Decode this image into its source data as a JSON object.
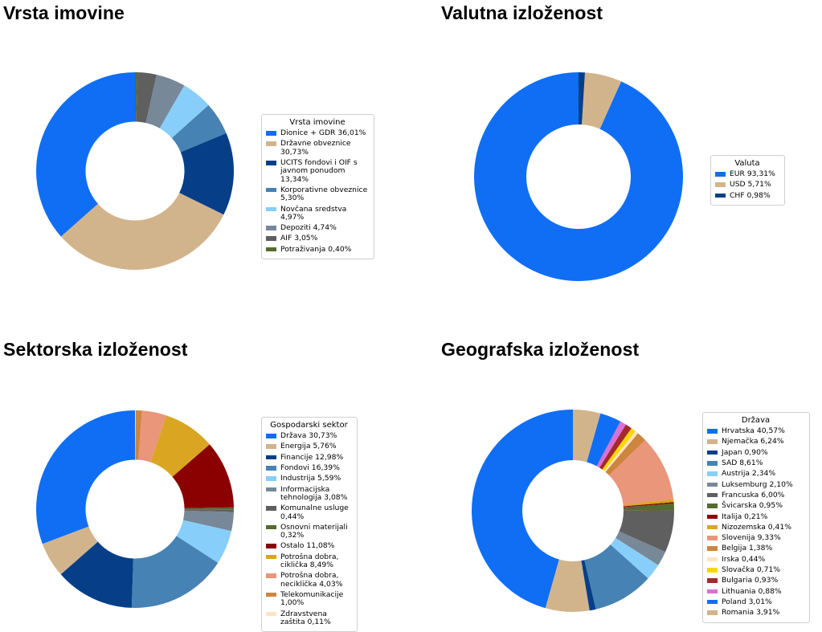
{
  "chart_data": [
    {
      "type": "pie",
      "title": "Vrsta imovine",
      "legend_title": "Vrsta imovine",
      "legend_placement": "right",
      "categories": [
        "Dionice + GDR 36,01%",
        "Državne obveznice 30,73%",
        "UCITS fondovi i OIF s javnom ponudom 13,34%",
        "Korporativne obveznice 5,30%",
        "Novčana sredstva 4,97%",
        "Depoziti 4,74%",
        "AIF 3,05%",
        "Potraživanja 0,40%"
      ],
      "values": [
        36.01,
        30.73,
        13.34,
        5.3,
        4.97,
        4.74,
        3.05,
        0.4
      ],
      "colors": [
        "#0f6ef4",
        "#d2b48c",
        "#063f88",
        "#4682b4",
        "#87cefa",
        "#778899",
        "#5f5f5f",
        "#556b2f"
      ]
    },
    {
      "type": "pie",
      "title": "Valutna izloženost",
      "legend_title": "Valuta",
      "legend_placement": "right",
      "categories": [
        "EUR 93,31%",
        "USD 5,71%",
        "CHF 0,98%"
      ],
      "values": [
        93.31,
        5.71,
        0.98
      ],
      "colors": [
        "#0f6ef4",
        "#d2b48c",
        "#063f88"
      ]
    },
    {
      "type": "pie",
      "title": "Sektorska izloženost",
      "legend_title": "Gospodarski sektor",
      "legend_placement": "right",
      "categories": [
        "Država 30,73%",
        "Energija 5,76%",
        "Financije 12,98%",
        "Fondovi 16,39%",
        "Industrija 5,59%",
        "Informacijska tehnologija 3,08%",
        "Komunalne usluge 0,44%",
        "Osnovni materijali 0,32%",
        "Ostalo 11,08%",
        "Potrošna dobra, ciklička 8,49%",
        "Potrošna dobra, neciklička 4,03%",
        "Telekomunikacije 1,00%",
        "Zdravstvena zaštita 0,11%"
      ],
      "values": [
        30.73,
        5.76,
        12.98,
        16.39,
        5.59,
        3.08,
        0.44,
        0.32,
        11.08,
        8.49,
        4.03,
        1.0,
        0.11
      ],
      "colors": [
        "#0f6ef4",
        "#d2b48c",
        "#063f88",
        "#4682b4",
        "#87cefa",
        "#778899",
        "#5f5f5f",
        "#556b2f",
        "#8b0000",
        "#daa520",
        "#e9967a",
        "#cd853f",
        "#ffe4c4"
      ]
    },
    {
      "type": "pie",
      "title": "Geografska izloženost",
      "legend_title": "Država",
      "legend_placement": "right",
      "categories": [
        "Hrvatska 40,57%",
        "Njemačka 6,24%",
        "Japan 0,90%",
        "SAD 8,61%",
        "Austrija 2,34%",
        "Luksemburg 2,10%",
        "Francuska 6,00%",
        "Švicarska 0,95%",
        "Italija 0,21%",
        "Nizozemska 0,41%",
        "Slovenija 9,33%",
        "Belgija 1,38%",
        "Irska 0,44%",
        "Slovačka 0,71%",
        "Bulgaria 0,93%",
        "Lithuania 0,88%",
        "Poland 3,01%",
        "Romania 3,91%"
      ],
      "values": [
        40.57,
        6.24,
        0.9,
        8.61,
        2.34,
        2.1,
        6.0,
        0.95,
        0.21,
        0.41,
        9.33,
        1.38,
        0.44,
        0.71,
        0.93,
        0.88,
        3.01,
        3.91
      ],
      "colors": [
        "#0f6ef4",
        "#d2b48c",
        "#063f88",
        "#4682b4",
        "#87cefa",
        "#778899",
        "#5f5f5f",
        "#556b2f",
        "#8b0000",
        "#daa520",
        "#e9967a",
        "#cd853f",
        "#ffe4c4",
        "#ffd700",
        "#a52a2a",
        "#da70d6",
        "#0f6ef4",
        "#d2b48c"
      ]
    }
  ]
}
